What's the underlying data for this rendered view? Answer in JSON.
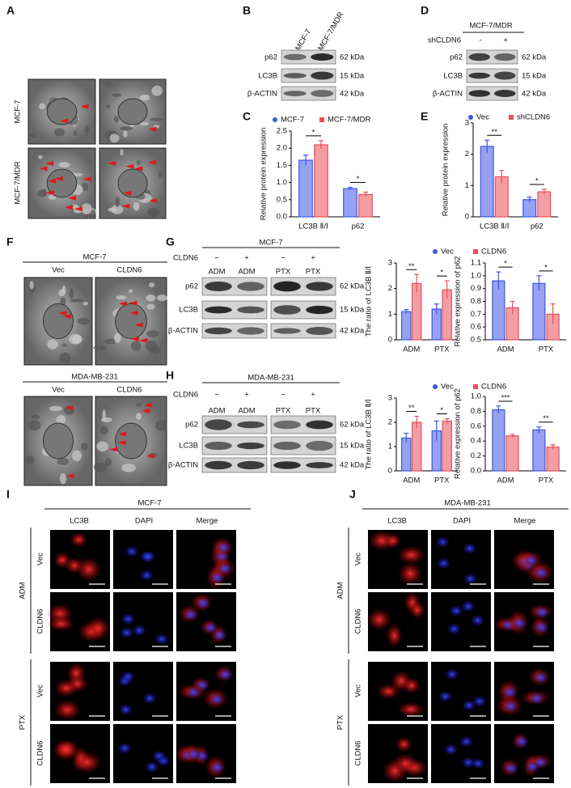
{
  "panel_labels": [
    "A",
    "B",
    "C",
    "D",
    "E",
    "F",
    "G",
    "H",
    "I",
    "J"
  ],
  "panel_a": {
    "rows": [
      "MCF-7",
      "MCF-7/MDR"
    ]
  },
  "panel_b": {
    "lanes": [
      "MCF-7",
      "MCF-7/MDR"
    ],
    "proteins": [
      "p62",
      "LC3B",
      "β-ACTIN"
    ],
    "sizes": [
      "62 kDa",
      "15 kDa",
      "42 kDa"
    ]
  },
  "panel_d": {
    "cell_line": "MCF-7/MDR",
    "treatment": "shCLDN6",
    "lanes": [
      "-",
      "+"
    ],
    "proteins": [
      "p62",
      "LC3B",
      "β-ACTIN"
    ],
    "sizes": [
      "62 kDa",
      "15 kDa",
      "42 kDa"
    ]
  },
  "panel_f": {
    "groups": [
      {
        "cell_line": "MCF-7",
        "columns": [
          "Vec",
          "CLDN6"
        ]
      },
      {
        "cell_line": "MDA-MB-231",
        "columns": [
          "Vec",
          "CLDN6"
        ]
      }
    ]
  },
  "panel_g": {
    "cell_line": "MCF-7",
    "treatment": "CLDN6",
    "signs": [
      "−",
      "+",
      "−",
      "+"
    ],
    "lanes": [
      "ADM",
      "ADM",
      "PTX",
      "PTX"
    ],
    "proteins": [
      "p62",
      "LC3B",
      "β-ACTIN"
    ],
    "sizes": [
      "62 kDa",
      "15 kDa",
      "42 kDa"
    ]
  },
  "panel_h": {
    "cell_line": "MDA-MB-231",
    "treatment": "CLDN6",
    "signs": [
      "−",
      "+",
      "−",
      "+"
    ],
    "lanes": [
      "ADM",
      "ADM",
      "PTX",
      "PTX"
    ],
    "proteins": [
      "p62",
      "LC3B",
      "β-ACTIN"
    ],
    "sizes": [
      "62 kDa",
      "15 kDa",
      "42 kDa"
    ]
  },
  "panel_i": {
    "cell_line": "MCF-7",
    "channels": [
      "LC3B",
      "DAPI",
      "Merge"
    ],
    "drugs": [
      "ADM",
      "PTX"
    ],
    "rows": [
      "Vec",
      "CLDN6"
    ]
  },
  "panel_j": {
    "cell_line": "MDA-MB-231",
    "channels": [
      "LC3B",
      "DAPI",
      "Merge"
    ],
    "drugs": [
      "ADM",
      "PTX"
    ],
    "rows": [
      "Vec",
      "CLDN6"
    ]
  },
  "chart_data": [
    {
      "type": "bar",
      "y_label": "Relative protein expression",
      "categories": [
        "LC3B Ⅱ/Ⅰ",
        "p62"
      ],
      "legend": "top",
      "series": [
        {
          "name": "MCF-7",
          "color": "#3e55e6",
          "values": [
            1.65,
            0.82
          ],
          "errors": [
            0.15,
            0.04
          ]
        },
        {
          "name": "MCF-7/MDR",
          "color": "#ea4f5b",
          "values": [
            2.1,
            0.65
          ],
          "errors": [
            0.12,
            0.07
          ]
        }
      ],
      "significance": [
        "*",
        "*"
      ],
      "ylim": [
        0,
        2.5
      ],
      "yticks": [
        {
          "value": 0,
          "label": "0.0"
        },
        0.5,
        {
          "value": 1,
          "label": "1.0"
        },
        1.5,
        {
          "value": 2,
          "label": "2.0"
        },
        2.5
      ]
    },
    {
      "type": "bar",
      "y_label": "Relative protein expression",
      "categories": [
        "LC3B Ⅱ/Ⅰ",
        "p62"
      ],
      "legend": "top",
      "series": [
        {
          "name": "Vec",
          "color": "#3e55e6",
          "values": [
            2.25,
            0.55
          ],
          "errors": [
            0.2,
            0.08
          ]
        },
        {
          "name": "shCLDN6",
          "color": "#ea4f5b",
          "values": [
            1.28,
            0.8
          ],
          "errors": [
            0.2,
            0.08
          ]
        }
      ],
      "significance": [
        "**",
        "*"
      ],
      "ylim": [
        0,
        3
      ],
      "yticks": [
        0,
        1,
        2,
        3
      ]
    },
    {
      "type": "bar",
      "y_label": "The ratio of LC3B Ⅱ/Ⅰ",
      "categories": [
        "ADM",
        "PTX"
      ],
      "series": [
        {
          "color": "#3e55e6",
          "values": [
            1.1,
            1.2
          ],
          "errors": [
            0.08,
            0.2
          ]
        },
        {
          "color": "#ea4f5b",
          "values": [
            2.2,
            1.95
          ],
          "errors": [
            0.35,
            0.35
          ]
        }
      ],
      "significance": [
        "**",
        "*"
      ],
      "ylim": [
        0,
        3
      ],
      "yticks": [
        0,
        1,
        2,
        3
      ]
    },
    {
      "type": "bar",
      "y_label": "Relative expression of p62",
      "categories": [
        "ADM",
        "PTX"
      ],
      "legend": "top",
      "series": [
        {
          "name": "Vec",
          "color": "#3e55e6",
          "values": [
            0.96,
            0.94
          ],
          "errors": [
            0.07,
            0.06
          ]
        },
        {
          "name": "CLDN6",
          "color": "#ea4f5b",
          "values": [
            0.75,
            0.7
          ],
          "errors": [
            0.05,
            0.08
          ]
        }
      ],
      "significance": [
        "*",
        "*"
      ],
      "ylim": [
        0.5,
        1.1
      ],
      "yticks": [
        0.5,
        0.6,
        0.7,
        0.8,
        0.9,
        {
          "value": 1,
          "label": "1.0"
        },
        1.1
      ]
    },
    {
      "type": "bar",
      "y_label": "The ratio of LC3B Ⅱ/Ⅰ",
      "categories": [
        "ADM",
        "PTX"
      ],
      "series": [
        {
          "color": "#3e55e6",
          "values": [
            1.35,
            1.65
          ],
          "errors": [
            0.2,
            0.4
          ]
        },
        {
          "color": "#ea4f5b",
          "values": [
            2.0,
            2.05
          ],
          "errors": [
            0.25,
            0.1
          ]
        }
      ],
      "significance": [
        "**",
        "*"
      ],
      "ylim": [
        0,
        3
      ],
      "yticks": [
        0,
        1,
        2,
        3
      ]
    },
    {
      "type": "bar",
      "y_label": "Relative expression of p62",
      "categories": [
        "ADM",
        "PTX"
      ],
      "legend": "top",
      "series": [
        {
          "name": "Vec",
          "color": "#3e55e6",
          "values": [
            0.82,
            0.55
          ],
          "errors": [
            0.05,
            0.04
          ]
        },
        {
          "name": "CLDN6",
          "color": "#ea4f5b",
          "values": [
            0.47,
            0.32
          ],
          "errors": [
            0.02,
            0.03
          ]
        }
      ],
      "significance": [
        "***",
        "**"
      ],
      "ylim": [
        0,
        1
      ],
      "yticks": [
        {
          "value": 0,
          "label": "0.0"
        },
        0.2,
        0.4,
        0.6,
        0.8,
        {
          "value": 1,
          "label": "1.0"
        }
      ]
    }
  ]
}
